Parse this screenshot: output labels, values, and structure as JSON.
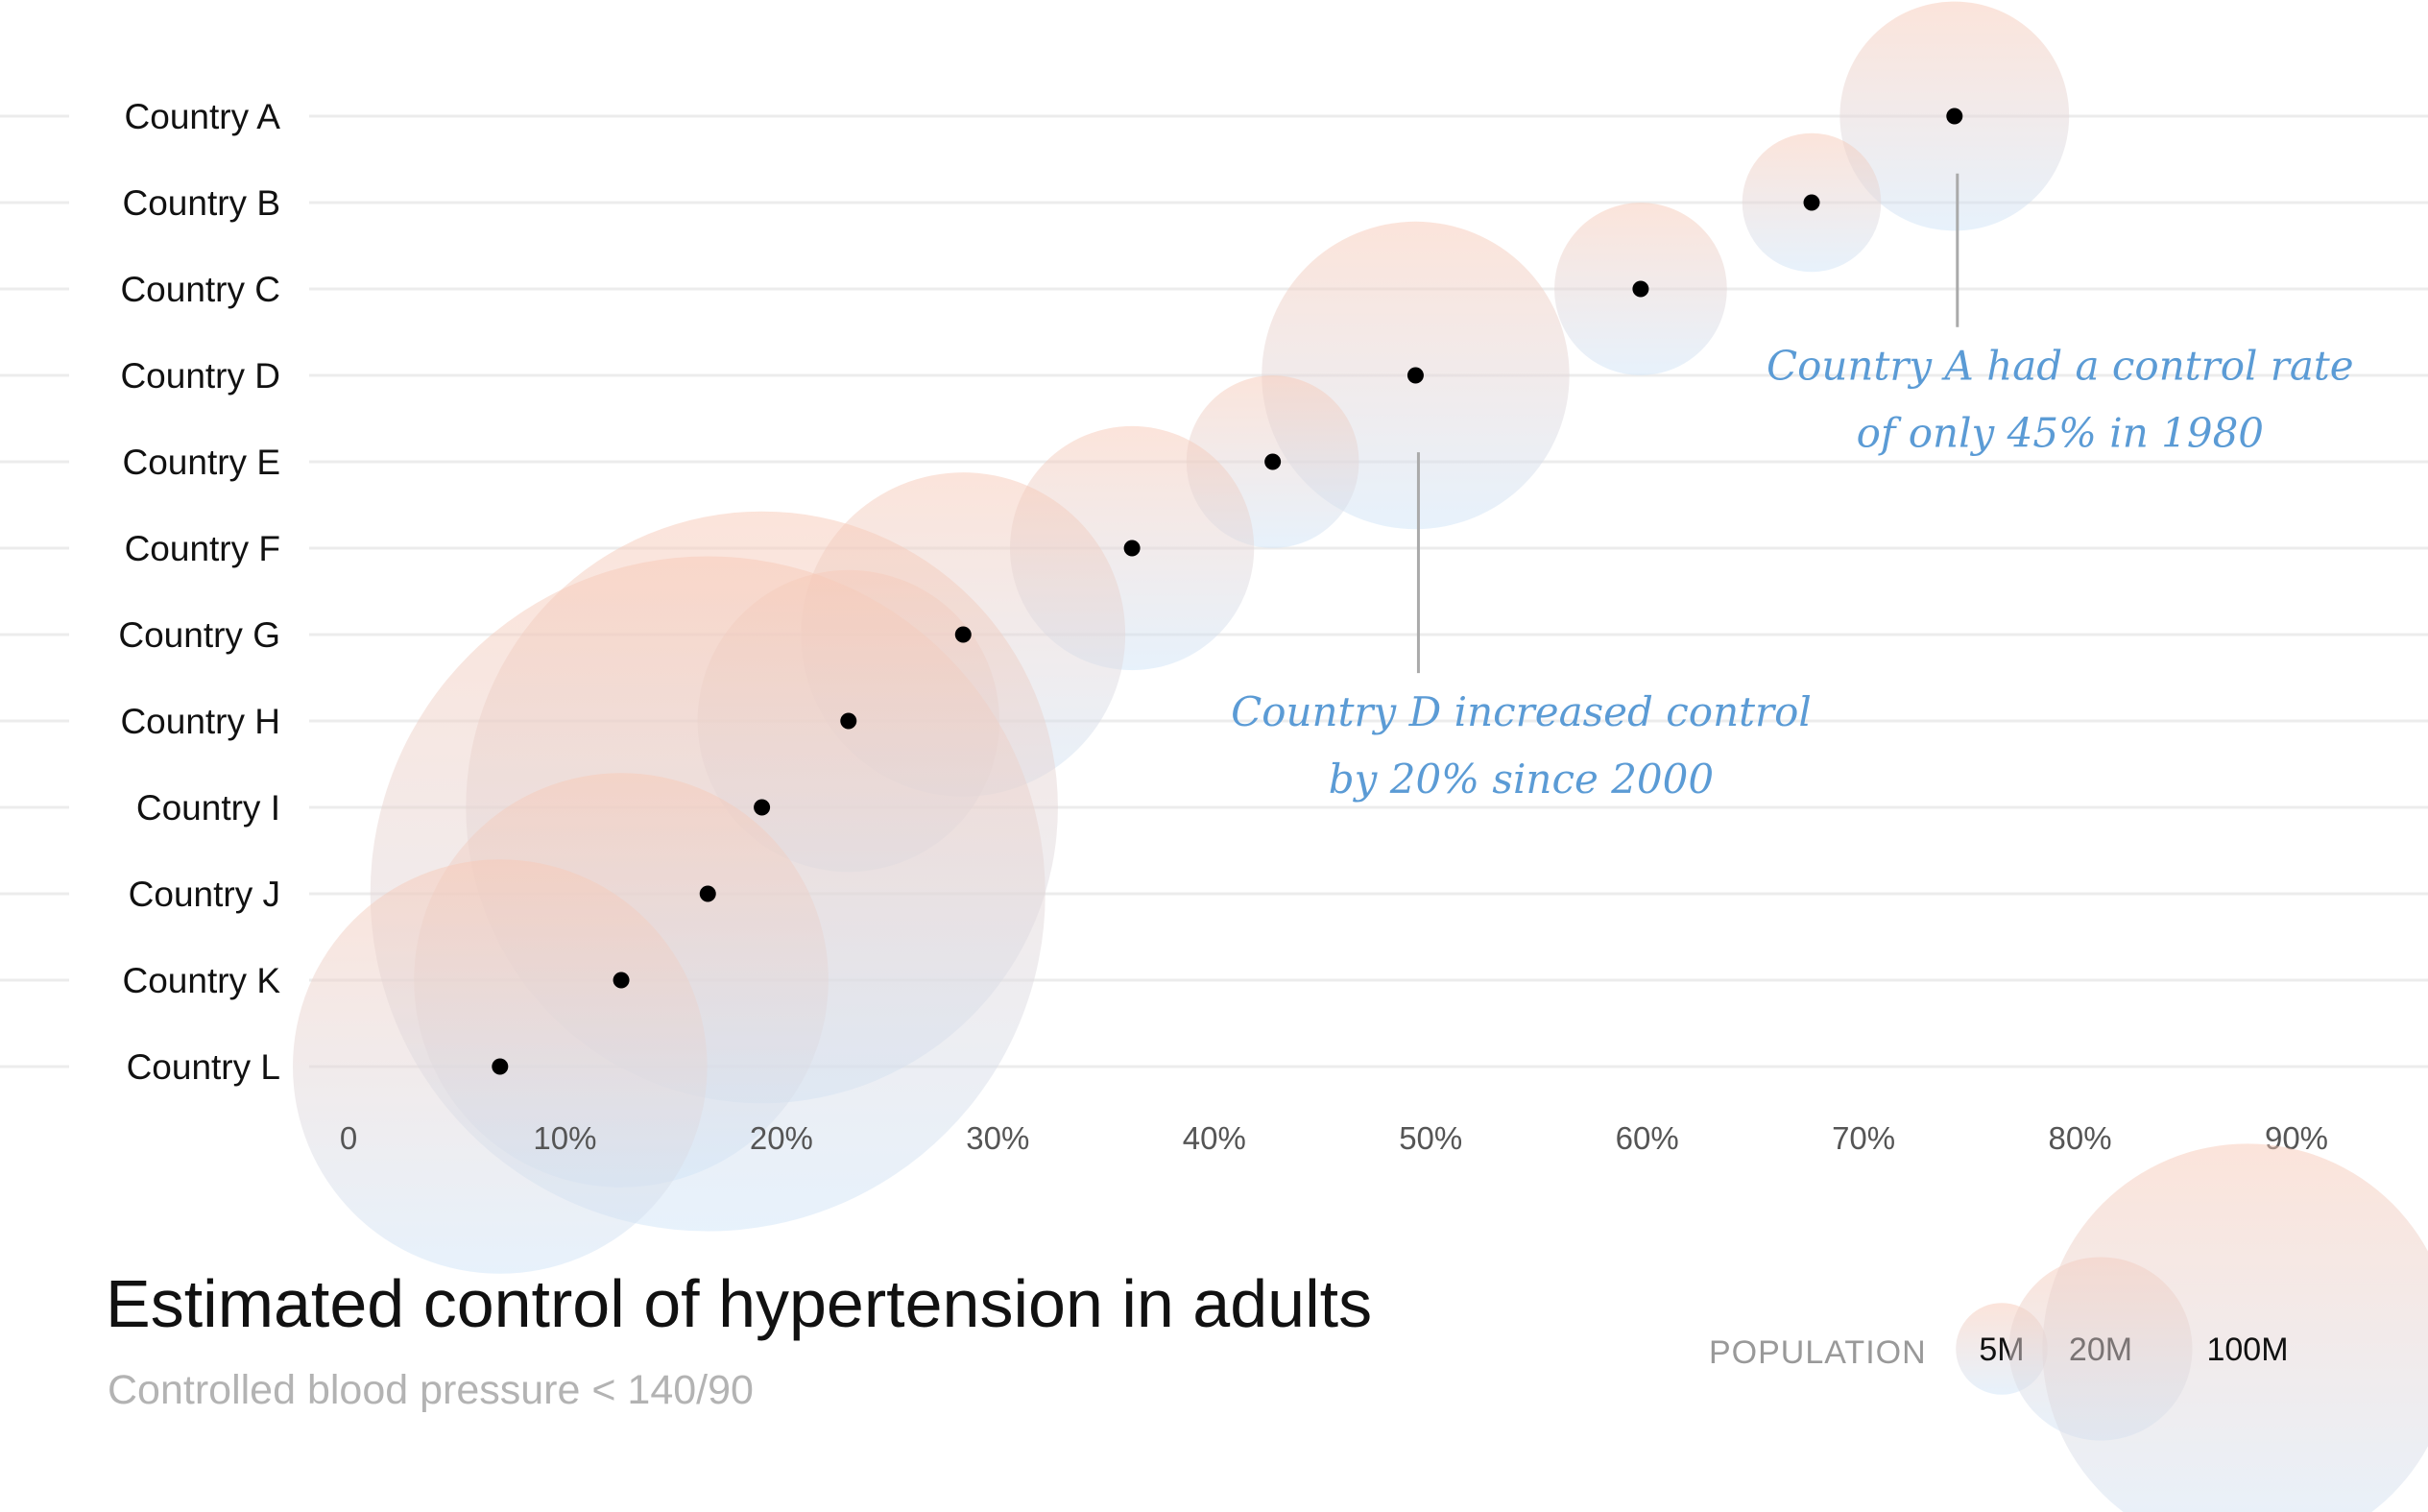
{
  "chart_data": {
    "type": "scatter",
    "title": "Estimated control of hypertension in adults",
    "subtitle": "Controlled blood pressure < 140/90",
    "categories": [
      "Country A",
      "Country B",
      "Country C",
      "Country D",
      "Country E",
      "Country F",
      "Country G",
      "Country H",
      "Country I",
      "Country J",
      "Country K",
      "Country L"
    ],
    "values": [
      74.2,
      67.6,
      59.7,
      49.3,
      42.7,
      36.2,
      28.4,
      23.1,
      19.1,
      16.6,
      12.6,
      7.0
    ],
    "population_millions": [
      30,
      11,
      17,
      54,
      17,
      34,
      60,
      52,
      200,
      260,
      98,
      98
    ],
    "xlim": [
      0,
      90
    ],
    "xticks": [
      "0",
      "10%",
      "20%",
      "30%",
      "40%",
      "50%",
      "60%",
      "70%",
      "80%",
      "90%"
    ],
    "grid": true,
    "size_legend": {
      "title": "POPULATION",
      "items": [
        {
          "label": "5M",
          "value": 5
        },
        {
          "label": "20M",
          "value": 20
        },
        {
          "label": "100M",
          "value": 100
        }
      ],
      "position": "bottom-right"
    },
    "annotations": [
      {
        "category": "Country A",
        "lines": [
          "Country A had a control rate",
          "of only 45% in 1980"
        ]
      },
      {
        "category": "Country D",
        "lines": [
          "Country D increased control",
          "by 20% since 2000"
        ]
      }
    ],
    "colors": {
      "bubble_top": "#f8c9b6",
      "bubble_bottom": "#cfe4f8",
      "point": "#000000",
      "annotation": "#5b9bd5",
      "grid": "#ececec",
      "tick_label": "#555555"
    }
  }
}
